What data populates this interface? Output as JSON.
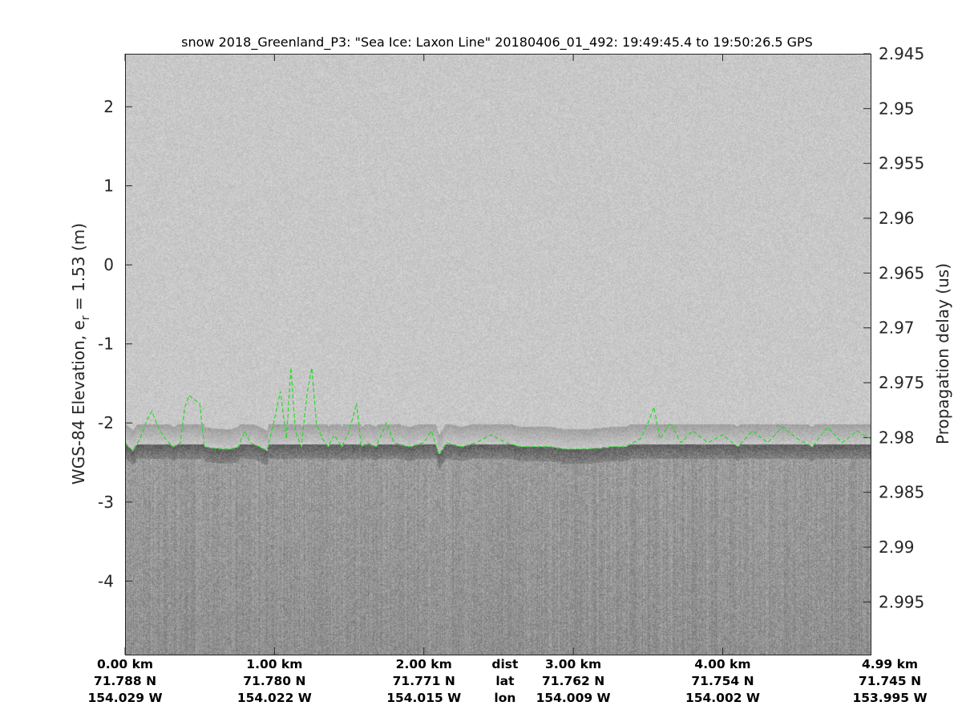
{
  "chart_data": {
    "type": "heatmap",
    "title": "snow 2018_Greenland_P3: \"Sea Ice: Laxon Line\"  20180406_01_492: 19:49:45.4 to 19:50:26.5 GPS",
    "ylabel_left": "WGS-84 Elevation, e",
    "ylabel_left_sub": "r",
    "ylabel_left_suffix": " = 1.53 (m)",
    "ylabel_right": "Propagation delay (us)",
    "ylim_left": [
      -4.93,
      2.67
    ],
    "yticks_left": [
      "2",
      "1",
      "0",
      "-1",
      "-2",
      "-3",
      "-4"
    ],
    "ylim_right": [
      2.945,
      2.9998
    ],
    "yticks_right": [
      "2.945",
      "2.95",
      "2.955",
      "2.96",
      "2.965",
      "2.97",
      "2.975",
      "2.98",
      "2.985",
      "2.99",
      "2.995"
    ],
    "xlim_km": [
      0,
      4.99
    ],
    "x_rows": [
      {
        "label": "dist",
        "position_km": 2.5
      },
      {
        "label": "lat"
      },
      {
        "label": "lon"
      }
    ],
    "xticks": [
      {
        "km": 0,
        "dist": "0.00 km",
        "lat": "71.788 N",
        "lon": "154.029 W"
      },
      {
        "km": 1,
        "dist": "1.00 km",
        "lat": "71.780 N",
        "lon": "154.022 W"
      },
      {
        "km": 2,
        "dist": "2.00 km",
        "lat": "71.771 N",
        "lon": "154.015 W"
      },
      {
        "km": 3,
        "dist": "3.00 km",
        "lat": "71.762 N",
        "lon": "154.009 W"
      },
      {
        "km": 4,
        "dist": "4.00 km",
        "lat": "71.754 N",
        "lon": "154.002 W"
      },
      {
        "km": 4.99,
        "dist": "4.99 km",
        "lat": "71.745 N",
        "lon": "153.995 W"
      }
    ],
    "colormap": "gray",
    "surface_line_color": "#22dd22",
    "surface_line_style": "dashed",
    "surface": {
      "x_km": [
        0.0,
        0.05,
        0.1,
        0.15,
        0.18,
        0.22,
        0.27,
        0.32,
        0.37,
        0.4,
        0.43,
        0.46,
        0.5,
        0.53,
        0.6,
        0.7,
        0.76,
        0.8,
        0.84,
        0.9,
        0.95,
        1.0,
        1.04,
        1.08,
        1.11,
        1.14,
        1.18,
        1.22,
        1.25,
        1.28,
        1.32,
        1.36,
        1.4,
        1.45,
        1.5,
        1.55,
        1.58,
        1.62,
        1.68,
        1.75,
        1.8,
        1.9,
        2.0,
        2.05,
        2.1,
        2.15,
        2.25,
        2.35,
        2.45,
        2.55,
        2.65,
        2.75,
        2.85,
        2.95,
        3.05,
        3.15,
        3.25,
        3.35,
        3.45,
        3.5,
        3.54,
        3.58,
        3.65,
        3.72,
        3.8,
        3.9,
        4.0,
        4.1,
        4.2,
        4.3,
        4.4,
        4.5,
        4.6,
        4.7,
        4.8,
        4.9,
        4.99
      ],
      "elev_m": [
        -2.25,
        -2.35,
        -2.2,
        -1.95,
        -1.85,
        -2.05,
        -2.2,
        -2.3,
        -2.25,
        -1.8,
        -1.65,
        -1.7,
        -1.75,
        -2.3,
        -2.32,
        -2.33,
        -2.3,
        -2.1,
        -2.25,
        -2.3,
        -2.35,
        -1.95,
        -1.6,
        -2.2,
        -1.3,
        -2.1,
        -2.3,
        -1.6,
        -1.3,
        -2.0,
        -2.2,
        -2.3,
        -2.15,
        -2.3,
        -2.1,
        -1.75,
        -2.3,
        -2.25,
        -2.3,
        -2.0,
        -2.25,
        -2.3,
        -2.25,
        -2.1,
        -2.4,
        -2.25,
        -2.3,
        -2.25,
        -2.15,
        -2.25,
        -2.3,
        -2.3,
        -2.3,
        -2.33,
        -2.33,
        -2.32,
        -2.3,
        -2.3,
        -2.2,
        -2.0,
        -1.8,
        -2.2,
        -2.0,
        -2.25,
        -2.1,
        -2.25,
        -2.15,
        -2.3,
        -2.1,
        -2.25,
        -2.05,
        -2.2,
        -2.3,
        -2.05,
        -2.25,
        -2.1,
        -2.2
      ]
    }
  }
}
